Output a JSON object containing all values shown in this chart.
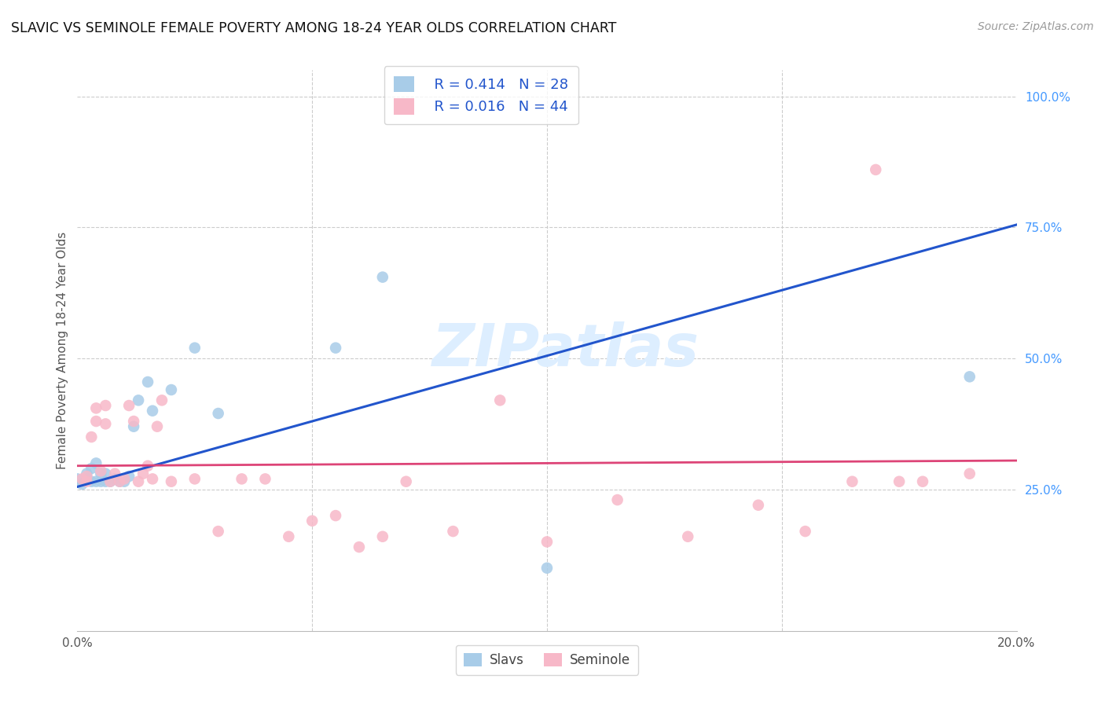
{
  "title": "SLAVIC VS SEMINOLE FEMALE POVERTY AMONG 18-24 YEAR OLDS CORRELATION CHART",
  "source": "Source: ZipAtlas.com",
  "ylabel": "Female Poverty Among 18-24 Year Olds",
  "xlim": [
    0.0,
    0.2
  ],
  "ylim": [
    -0.02,
    1.05
  ],
  "slavs_R": 0.414,
  "slavs_N": 28,
  "seminole_R": 0.016,
  "seminole_N": 44,
  "slavs_color": "#a8cce8",
  "seminole_color": "#f7b8c8",
  "line_slavs_color": "#2255cc",
  "line_seminole_color": "#dd4477",
  "background_color": "#ffffff",
  "grid_color": "#cccccc",
  "watermark": "ZIPatlas",
  "watermark_color": "#ddeeff",
  "right_tick_color": "#4499ff",
  "slavs_x": [
    0.0,
    0.001,
    0.002,
    0.002,
    0.003,
    0.003,
    0.004,
    0.004,
    0.005,
    0.005,
    0.006,
    0.006,
    0.007,
    0.008,
    0.009,
    0.01,
    0.011,
    0.012,
    0.013,
    0.015,
    0.016,
    0.02,
    0.025,
    0.03,
    0.055,
    0.065,
    0.1,
    0.19
  ],
  "slavs_y": [
    0.27,
    0.26,
    0.27,
    0.28,
    0.29,
    0.265,
    0.3,
    0.265,
    0.265,
    0.28,
    0.28,
    0.265,
    0.265,
    0.27,
    0.265,
    0.265,
    0.275,
    0.37,
    0.42,
    0.455,
    0.4,
    0.44,
    0.52,
    0.395,
    0.52,
    0.655,
    0.1,
    0.465
  ],
  "seminole_x": [
    0.001,
    0.002,
    0.002,
    0.003,
    0.004,
    0.004,
    0.005,
    0.006,
    0.006,
    0.007,
    0.008,
    0.009,
    0.01,
    0.011,
    0.012,
    0.013,
    0.014,
    0.015,
    0.016,
    0.017,
    0.018,
    0.02,
    0.025,
    0.03,
    0.035,
    0.04,
    0.045,
    0.05,
    0.055,
    0.06,
    0.065,
    0.07,
    0.08,
    0.09,
    0.1,
    0.115,
    0.13,
    0.145,
    0.155,
    0.165,
    0.17,
    0.175,
    0.18,
    0.19
  ],
  "seminole_y": [
    0.27,
    0.275,
    0.265,
    0.35,
    0.38,
    0.405,
    0.285,
    0.375,
    0.41,
    0.265,
    0.28,
    0.265,
    0.27,
    0.41,
    0.38,
    0.265,
    0.28,
    0.295,
    0.27,
    0.37,
    0.42,
    0.265,
    0.27,
    0.17,
    0.27,
    0.27,
    0.16,
    0.19,
    0.2,
    0.14,
    0.16,
    0.265,
    0.17,
    0.42,
    0.15,
    0.23,
    0.16,
    0.22,
    0.17,
    0.265,
    0.86,
    0.265,
    0.265,
    0.28
  ],
  "slavs_line_x0": 0.0,
  "slavs_line_y0": 0.255,
  "slavs_line_x1": 0.2,
  "slavs_line_y1": 0.755,
  "sem_line_x0": 0.0,
  "sem_line_y0": 0.295,
  "sem_line_x1": 0.2,
  "sem_line_y1": 0.305
}
